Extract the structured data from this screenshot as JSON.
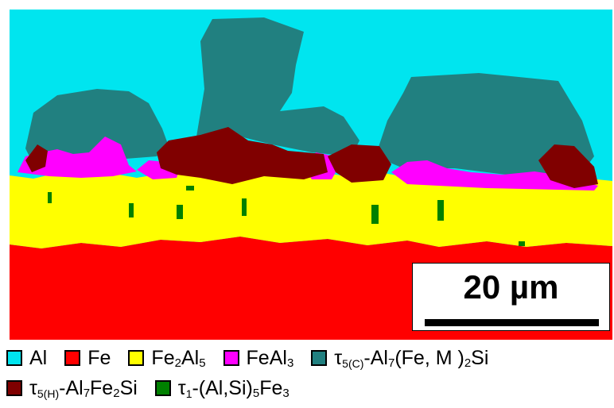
{
  "image": {
    "phases": [
      {
        "key": "al",
        "label": "Al",
        "color": "#00e5ef"
      },
      {
        "key": "fe",
        "label": "Fe",
        "color": "#ff0000"
      },
      {
        "key": "fe2al5",
        "label": "Fe2Al5",
        "color": "#ffff00"
      },
      {
        "key": "feal3",
        "label": "FeAl3",
        "color": "#ff00ff"
      },
      {
        "key": "tau5c",
        "label": "τ5(C)-Al7(Fe, M )2Si",
        "color": "#218080"
      },
      {
        "key": "tau5h",
        "label": "τ5(H)-Al7Fe2Si",
        "color": "#800000"
      },
      {
        "key": "tau1",
        "label": "τ1-(Al,Si)5Fe3",
        "color": "#008000"
      }
    ],
    "scale_bar": {
      "label": "20 µm"
    }
  },
  "legend": {
    "al": {
      "name": "Al"
    },
    "fe": {
      "name": "Fe"
    },
    "fe2al5": {
      "base1": "Fe",
      "sub1": "2",
      "base2": "Al",
      "sub2": "5"
    },
    "feal3": {
      "base1": "FeAl",
      "sub1": "3"
    },
    "tau5c": {
      "tau": "τ",
      "tsub": "5(C)",
      "base1": "-Al",
      "sub1": "7",
      "base2": "(Fe, M )",
      "sub2": "2",
      "base3": "Si"
    },
    "tau5h": {
      "tau": "τ",
      "tsub": "5(H)",
      "base1": "-Al",
      "sub1": "7",
      "base2": "Fe",
      "sub2": "2",
      "base3": "Si"
    },
    "tau1": {
      "tau": "τ",
      "tsub": "1",
      "base1": "-(Al,Si)",
      "sub1": "5",
      "base2": "Fe",
      "sub2": "3"
    }
  }
}
